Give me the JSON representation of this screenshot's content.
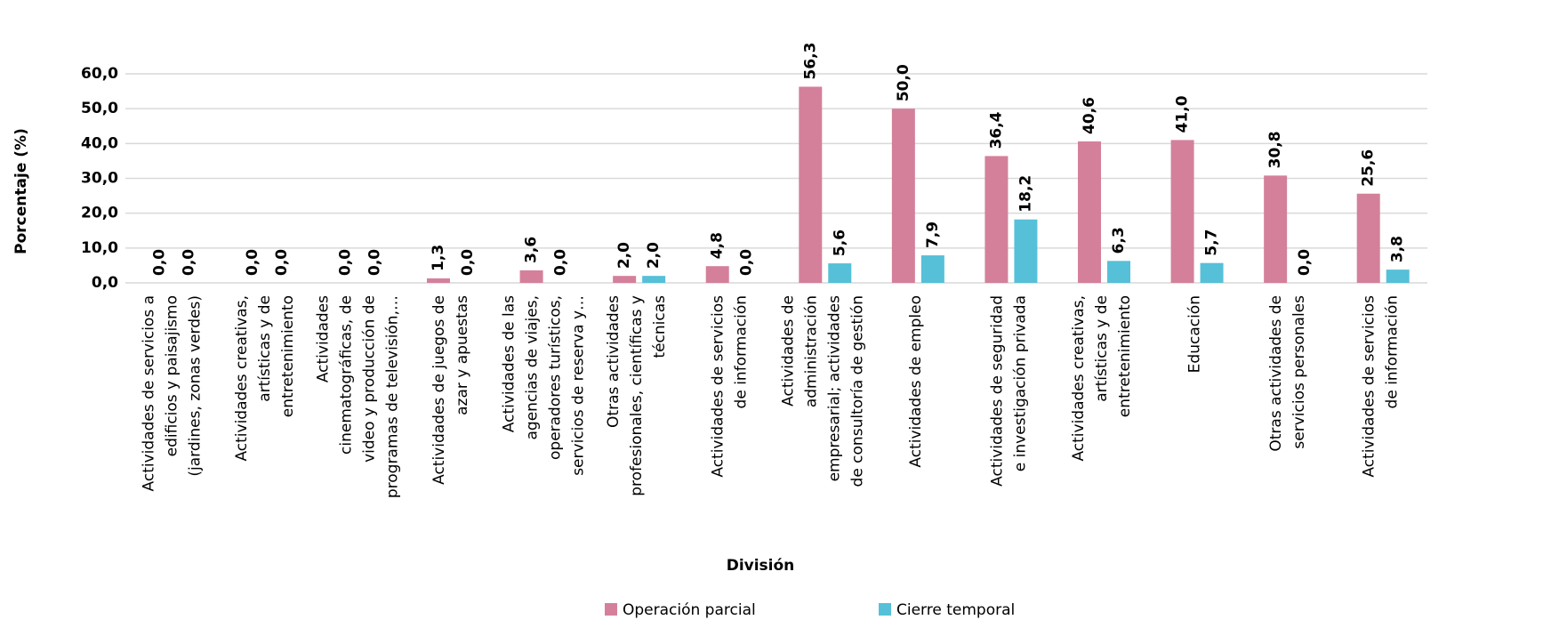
{
  "chart_data": {
    "type": "bar",
    "x_label": "División",
    "y_label": "Porcentaje (%)",
    "categories": [
      [
        "Actividades de servicios a",
        "edificios y paisajismo",
        "(jardines, zonas verdes)"
      ],
      [
        "Actividades creativas,",
        "artísticas y de",
        "entretenimiento"
      ],
      [
        "Actividades",
        "cinematográficas, de",
        "video y producción de",
        "programas de televisión,…"
      ],
      [
        "Actividades de juegos de",
        "azar y apuestas"
      ],
      [
        "Actividades de las",
        "agencias de viajes,",
        "operadores turísticos,",
        "servicios de reserva y…"
      ],
      [
        "Otras actividades",
        "profesionales, científicas y",
        "técnicas"
      ],
      [
        "Actividades de servicios",
        "de información"
      ],
      [
        "Actividades de",
        "administración",
        "empresarial; actividades",
        "de consultoría de gestión"
      ],
      [
        "Actividades de empleo"
      ],
      [
        "Actividades de seguridad",
        "e investigación privada"
      ],
      [
        "Actividades creativas,",
        "artísticas y de",
        "entretenimiento"
      ],
      [
        "Educación"
      ],
      [
        "Otras actividades de",
        "servicios personales"
      ],
      [
        "Actividades de servicios",
        "de información"
      ]
    ],
    "series": [
      {
        "name": "Operación parcial",
        "color": "#d4809b",
        "values": [
          0,
          0,
          0,
          1.3,
          3.6,
          2.0,
          4.8,
          56.3,
          50.0,
          36.4,
          40.6,
          41.0,
          30.8,
          25.6
        ],
        "value_labels": [
          "0,0",
          "0,0",
          "0,0",
          "1,3",
          "3,6",
          "2,0",
          "4,8",
          "56,3",
          "50,0",
          "36,4",
          "40,6",
          "41,0",
          "30,8",
          "25,6"
        ]
      },
      {
        "name": "Cierre temporal",
        "color": "#56c0d8",
        "values": [
          0,
          0,
          0,
          0,
          0,
          2.0,
          0,
          5.6,
          7.9,
          18.2,
          6.3,
          5.7,
          0,
          3.8
        ],
        "value_labels": [
          "0,0",
          "0,0",
          "0,0",
          "0,0",
          "0,0",
          "2,0",
          "0,0",
          "5,6",
          "7,9",
          "18,2",
          "6,3",
          "5,7",
          "0,0",
          "3,8"
        ]
      }
    ],
    "ylim": [
      0,
      60
    ],
    "yticks": [
      {
        "value": 0,
        "label": "0,0"
      },
      {
        "value": 10,
        "label": "10,0"
      },
      {
        "value": 20,
        "label": "20,0"
      },
      {
        "value": 30,
        "label": "30,0"
      },
      {
        "value": 40,
        "label": "40,0"
      },
      {
        "value": 50,
        "label": "50,0"
      },
      {
        "value": 60,
        "label": "60,0"
      }
    ],
    "grid": true,
    "legend": "bottom"
  }
}
